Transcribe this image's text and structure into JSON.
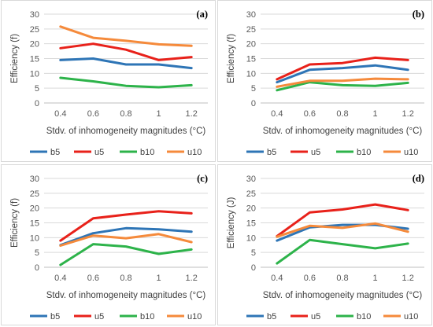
{
  "colors": {
    "b5": "#2e75b6",
    "u5": "#e8211a",
    "b10": "#2db34a",
    "u10": "#f58a3b",
    "grid": "#d9d9d9",
    "axis": "#bfbfbf"
  },
  "chart_data": [
    {
      "type": "line",
      "panel_label": "(a)",
      "xlabel": "Stdv. of inhomogeneity magnitudes (°C)",
      "ylabel": "Efficiency (f)",
      "x": [
        0.4,
        0.6,
        0.8,
        1,
        1.2
      ],
      "x_tick_labels": [
        "0.4",
        "0.6",
        "0.8",
        "1",
        "1.2"
      ],
      "ylim": [
        0,
        30
      ],
      "y_ticks": [
        0,
        5,
        10,
        15,
        20,
        25,
        30
      ],
      "grid": true,
      "legend_position": "bottom",
      "series": [
        {
          "name": "b5",
          "values": [
            14.5,
            15,
            13,
            13,
            11.8
          ]
        },
        {
          "name": "u5",
          "values": [
            18.5,
            20,
            18,
            14.5,
            15.5
          ]
        },
        {
          "name": "b10",
          "values": [
            8.5,
            7.3,
            5.8,
            5.3,
            6
          ]
        },
        {
          "name": "u10",
          "values": [
            25.8,
            22,
            21,
            19.8,
            19.3
          ]
        }
      ]
    },
    {
      "type": "line",
      "panel_label": "(b)",
      "xlabel": "Stdv. of inhomogeneity magnitudes (°C)",
      "ylabel": "Efficiency (f)",
      "x": [
        0.4,
        0.6,
        0.8,
        1,
        1.2
      ],
      "x_tick_labels": [
        "0.4",
        "0.6",
        "0.8",
        "1",
        "1.2"
      ],
      "ylim": [
        0,
        30
      ],
      "y_ticks": [
        0,
        5,
        10,
        15,
        20,
        25,
        30
      ],
      "grid": true,
      "legend_position": "bottom",
      "series": [
        {
          "name": "b5",
          "values": [
            7,
            11.2,
            11.8,
            12.7,
            11.2
          ]
        },
        {
          "name": "u5",
          "values": [
            8,
            13,
            13.5,
            15.3,
            14.5
          ]
        },
        {
          "name": "b10",
          "values": [
            4.3,
            7,
            6,
            5.8,
            6.8
          ]
        },
        {
          "name": "u10",
          "values": [
            5.5,
            7.5,
            7.5,
            8.2,
            8
          ]
        }
      ]
    },
    {
      "type": "line",
      "panel_label": "(c)",
      "xlabel": "Stdv. of inhomogeneity magnitudes (°C)",
      "ylabel": "Efficiency (f)",
      "x": [
        0.4,
        0.6,
        0.8,
        1,
        1.2
      ],
      "x_tick_labels": [
        "0.4",
        "0.6",
        "0.8",
        "1",
        "1.2"
      ],
      "ylim": [
        0,
        30
      ],
      "y_ticks": [
        0,
        5,
        10,
        15,
        20,
        25,
        30
      ],
      "grid": true,
      "legend_position": "bottom",
      "series": [
        {
          "name": "b5",
          "values": [
            7.5,
            11.5,
            13.2,
            12.8,
            12
          ]
        },
        {
          "name": "u5",
          "values": [
            9,
            16.5,
            17.8,
            18.9,
            18.2
          ]
        },
        {
          "name": "b10",
          "values": [
            0.8,
            7.8,
            7,
            4.5,
            6
          ]
        },
        {
          "name": "u10",
          "values": [
            7.3,
            10.7,
            9.8,
            11.2,
            8.5
          ]
        }
      ]
    },
    {
      "type": "line",
      "panel_label": "(d)",
      "xlabel": "Stdv. of inhomogeneity magnitudes (°C)",
      "ylabel": "Efficiency (J)",
      "x": [
        0.4,
        0.6,
        0.8,
        1,
        1.2
      ],
      "x_tick_labels": [
        "0.4",
        "0.6",
        "0.8",
        "1",
        "1.2"
      ],
      "ylim": [
        0,
        30
      ],
      "y_ticks": [
        0,
        5,
        10,
        15,
        20,
        25,
        30
      ],
      "grid": true,
      "legend_position": "bottom",
      "series": [
        {
          "name": "b5",
          "values": [
            9,
            13.5,
            14.3,
            14.3,
            13
          ]
        },
        {
          "name": "u5",
          "values": [
            10.5,
            18.5,
            19.5,
            21.2,
            19.3
          ]
        },
        {
          "name": "b10",
          "values": [
            1.3,
            9.2,
            7.8,
            6.4,
            8
          ]
        },
        {
          "name": "u10",
          "values": [
            10.3,
            14,
            13.3,
            14.8,
            12
          ]
        }
      ]
    }
  ]
}
